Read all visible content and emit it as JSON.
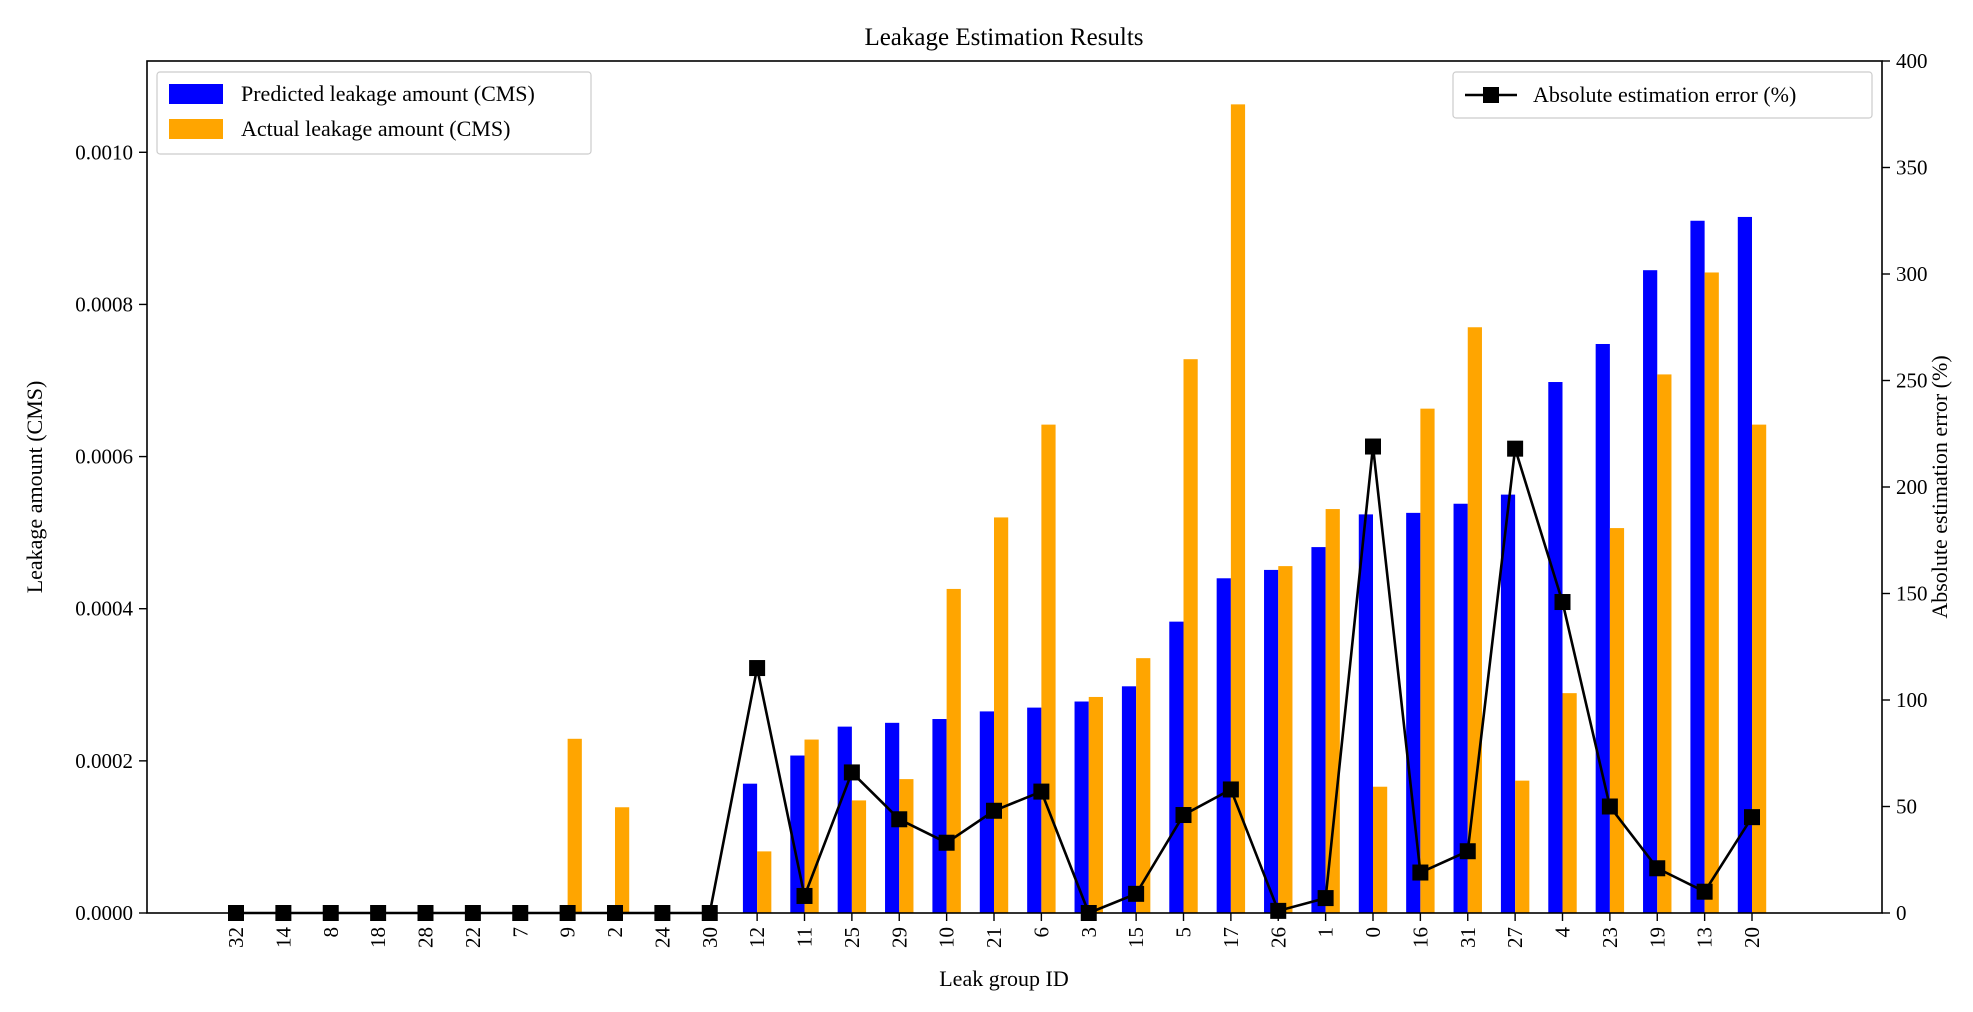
{
  "chart_data": {
    "type": "bar",
    "title": "Leakage Estimation Results",
    "xlabel": "Leak group ID",
    "ylabel": "Leakage amount (CMS)",
    "y2label": "Absolute estimation error (%)",
    "categories": [
      "32",
      "14",
      "8",
      "18",
      "28",
      "22",
      "7",
      "9",
      "2",
      "24",
      "30",
      "12",
      "11",
      "25",
      "29",
      "10",
      "21",
      "6",
      "3",
      "15",
      "5",
      "17",
      "26",
      "1",
      "0",
      "16",
      "31",
      "27",
      "4",
      "23",
      "19",
      "13",
      "20"
    ],
    "ylim": [
      0,
      0.00112
    ],
    "y2lim": [
      0,
      400
    ],
    "yticks": [
      "0.0000",
      "0.0002",
      "0.0004",
      "0.0006",
      "0.0008",
      "0.0010"
    ],
    "y2ticks": [
      "0",
      "50",
      "100",
      "150",
      "200",
      "250",
      "300",
      "350",
      "400"
    ],
    "series": [
      {
        "name": "Predicted leakage amount (CMS)",
        "type": "bar",
        "axis": "left",
        "color": "#0000ff",
        "values": [
          0,
          0,
          0,
          0,
          0,
          0,
          0,
          0,
          0,
          0,
          0,
          0.00017,
          0.000207,
          0.000245,
          0.00025,
          0.000255,
          0.000265,
          0.00027,
          0.000278,
          0.000298,
          0.000383,
          0.00044,
          0.000451,
          0.000481,
          0.000524,
          0.000526,
          0.000538,
          0.00055,
          0.000698,
          0.000748,
          0.000845,
          0.00091,
          0.000915
        ]
      },
      {
        "name": "Actual leakage amount (CMS)",
        "type": "bar",
        "axis": "left",
        "color": "#ffa500",
        "values": [
          0,
          0,
          0,
          0,
          0,
          0,
          0,
          0.000229,
          0.000139,
          0,
          0,
          8.1e-05,
          0.000228,
          0.000148,
          0.000176,
          0.000426,
          0.00052,
          0.000642,
          0.000284,
          0.000335,
          0.000728,
          0.001063,
          0.000456,
          0.000531,
          0.000166,
          0.000663,
          0.00077,
          0.000174,
          0.000289,
          0.000506,
          0.000708,
          0.000842,
          0.000642
        ]
      },
      {
        "name": "Absolute estimation error (%)",
        "type": "line",
        "axis": "right",
        "color": "#000000",
        "values": [
          0,
          0,
          0,
          0,
          0,
          0,
          0,
          0,
          0,
          0,
          0,
          115,
          8,
          66,
          44,
          33,
          48,
          57,
          0,
          9,
          46,
          58,
          1,
          7,
          219,
          19,
          29,
          218,
          146,
          50,
          21,
          10,
          45
        ]
      }
    ],
    "legend_left": {
      "placement": "top-left",
      "items": [
        "Predicted leakage amount (CMS)",
        "Actual leakage amount (CMS)"
      ]
    },
    "legend_right": {
      "placement": "top-right",
      "items": [
        "Absolute estimation error (%)"
      ]
    },
    "grid": false
  }
}
